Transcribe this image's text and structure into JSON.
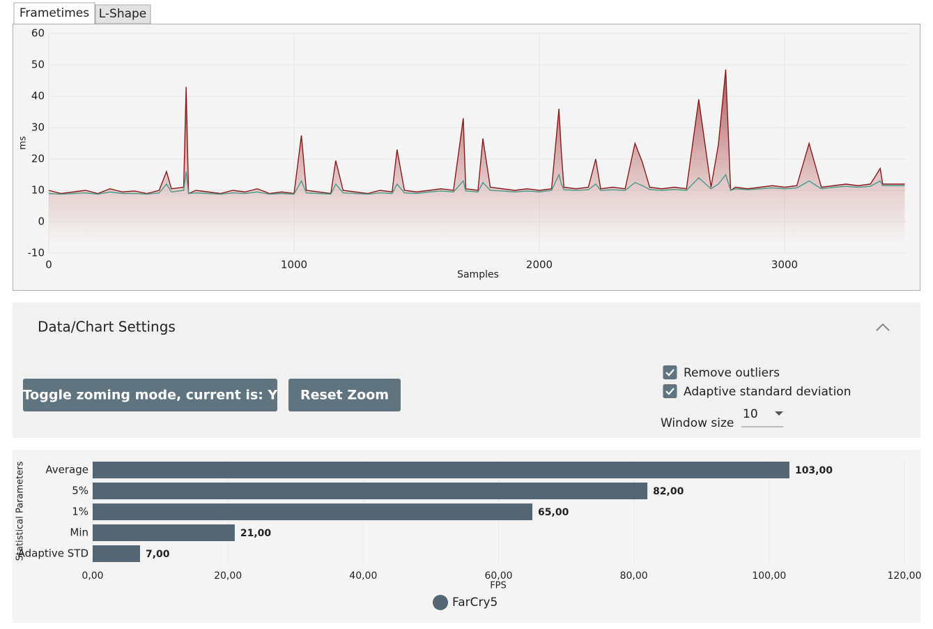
{
  "tabs": [
    "Frametimes",
    "L-Shape"
  ],
  "chart_data": [
    {
      "type": "area",
      "xlabel": "Samples",
      "ylabel": "ms",
      "xlim": [
        0,
        3500
      ],
      "ylim": [
        -10,
        60
      ],
      "xticks": [
        0,
        1000,
        2000,
        3000
      ],
      "yticks": [
        -10,
        0,
        10,
        20,
        30,
        40,
        50,
        60
      ],
      "grid": true,
      "x": [
        0,
        50,
        100,
        150,
        200,
        250,
        300,
        350,
        400,
        450,
        480,
        500,
        550,
        560,
        570,
        600,
        650,
        700,
        750,
        800,
        850,
        900,
        950,
        1000,
        1030,
        1050,
        1100,
        1150,
        1170,
        1200,
        1250,
        1300,
        1350,
        1400,
        1420,
        1450,
        1500,
        1550,
        1600,
        1650,
        1690,
        1700,
        1750,
        1770,
        1800,
        1850,
        1900,
        1950,
        2000,
        2050,
        2080,
        2090,
        2100,
        2150,
        2200,
        2230,
        2250,
        2300,
        2350,
        2390,
        2420,
        2450,
        2500,
        2550,
        2600,
        2650,
        2700,
        2730,
        2760,
        2780,
        2800,
        2850,
        2900,
        2950,
        3000,
        3050,
        3100,
        3150,
        3200,
        3250,
        3300,
        3350,
        3390,
        3400,
        3450,
        3490
      ],
      "series": [
        {
          "color": "#8b1a1a",
          "values": [
            10,
            9,
            9.5,
            10,
            9,
            10.5,
            9.5,
            9.8,
            9,
            10,
            16,
            10.5,
            11,
            43,
            9,
            10,
            9.5,
            9,
            10,
            9.5,
            10.5,
            9,
            9.5,
            9,
            27.5,
            10,
            9.5,
            9,
            19.5,
            10,
            9.5,
            9,
            10,
            9.5,
            23,
            10,
            9.5,
            10,
            10.5,
            10,
            33,
            10.5,
            10,
            26.5,
            11,
            10.5,
            10,
            10.5,
            10,
            10.5,
            36,
            22,
            11,
            10.5,
            11,
            20,
            10.5,
            11,
            10.5,
            25,
            19,
            11,
            10.5,
            11,
            10.5,
            39,
            11,
            24.5,
            48.5,
            10,
            11,
            10.5,
            11,
            11.5,
            11,
            11.5,
            25,
            11,
            11.5,
            12,
            11.5,
            12,
            17,
            12,
            12,
            12
          ]
        },
        {
          "color": "#4a9a8a",
          "values": [
            9,
            8.8,
            9,
            9.2,
            8.8,
            9.5,
            9,
            9,
            8.8,
            9.2,
            12,
            9.5,
            10,
            16,
            9,
            9.2,
            9,
            8.8,
            9.2,
            9,
            9.5,
            8.8,
            9,
            8.8,
            13,
            9.2,
            9,
            8.8,
            12,
            9.2,
            9,
            8.8,
            9.2,
            9,
            12,
            9.2,
            9,
            9.5,
            9.8,
            9.5,
            13,
            9.8,
            9.5,
            12.5,
            10,
            9.8,
            9.5,
            9.8,
            9.5,
            10,
            15,
            12,
            10.2,
            10,
            10.2,
            12,
            10,
            10.2,
            10,
            12.5,
            11.5,
            10.3,
            10,
            10.3,
            10,
            14,
            10.5,
            12,
            15,
            10,
            10.5,
            10.2,
            10.5,
            10.8,
            10.5,
            10.8,
            13,
            10.5,
            11,
            11.3,
            11,
            11.3,
            13,
            11.5,
            11.5,
            11.5
          ]
        }
      ]
    },
    {
      "type": "hbar",
      "xlabel": "FPS",
      "ylabel": "Statistical Parameters",
      "categories": [
        "Average",
        "5%",
        "1%",
        "Min",
        "Adaptive STD"
      ],
      "xlim": [
        0,
        120
      ],
      "xticks": [
        {
          "value": 0,
          "label": "0,00"
        },
        {
          "value": 20,
          "label": "20,00"
        },
        {
          "value": 40,
          "label": "40,00"
        },
        {
          "value": 60,
          "label": "60,00"
        },
        {
          "value": 80,
          "label": "80,00"
        },
        {
          "value": 100,
          "label": "100,00"
        },
        {
          "value": 120,
          "label": "120,00"
        }
      ],
      "grid": true,
      "series": [
        {
          "name": "FarCry5",
          "color": "#546673",
          "values": [
            103,
            82,
            65,
            21,
            7
          ],
          "value_labels": [
            "103,00",
            "82,00",
            "65,00",
            "21,00",
            "7,00"
          ]
        }
      ]
    }
  ],
  "settings": {
    "title": "Data/Chart Settings",
    "buttons": [
      "Toggle zoming mode, current is: Y",
      "Reset Zoom"
    ],
    "checkboxes": [
      {
        "label": "Remove outliers",
        "checked": true
      },
      {
        "label": "Adaptive standard deviation",
        "checked": true
      }
    ],
    "window_size": {
      "label": "Window size",
      "value": 10
    }
  }
}
